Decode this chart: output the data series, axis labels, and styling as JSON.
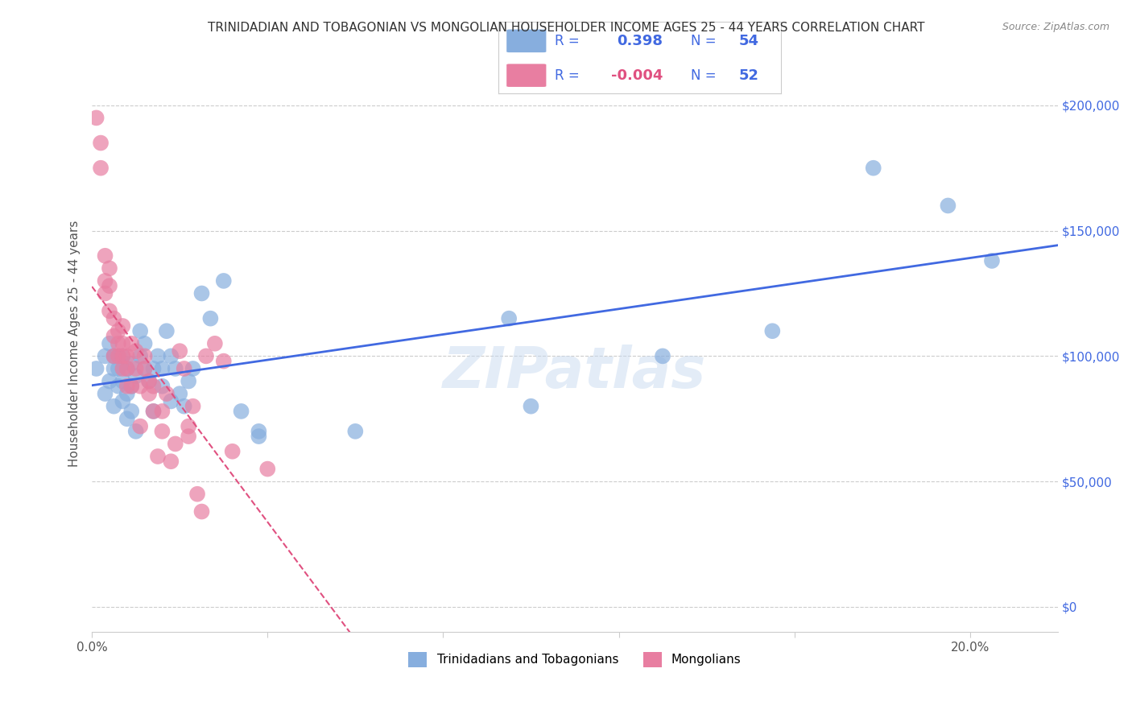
{
  "title": "TRINIDADIAN AND TOBAGONIAN VS MONGOLIAN HOUSEHOLDER INCOME AGES 25 - 44 YEARS CORRELATION CHART",
  "source": "Source: ZipAtlas.com",
  "xlabel_bottom": "",
  "ylabel": "Householder Income Ages 25 - 44 years",
  "xlim": [
    0.0,
    0.22
  ],
  "ylim": [
    -10000,
    220000
  ],
  "x_ticks": [
    0.0,
    0.04,
    0.08,
    0.12,
    0.16,
    0.2
  ],
  "x_tick_labels": [
    "0.0%",
    "",
    "",
    "",
    "",
    "20.0%"
  ],
  "y_ticks": [
    0,
    50000,
    100000,
    150000,
    200000
  ],
  "y_tick_labels": [
    "$0",
    "$50,000",
    "$100,000",
    "$150,000",
    "$200,000"
  ],
  "legend_labels": [
    "Trinidadians and Tobagonians",
    "Mongolians"
  ],
  "blue_color": "#87AEDE",
  "pink_color": "#E87EA1",
  "blue_line_color": "#4169E1",
  "pink_line_color": "#E05080",
  "R_blue": 0.398,
  "N_blue": 54,
  "R_pink": -0.004,
  "N_pink": 52,
  "blue_scatter_x": [
    0.001,
    0.003,
    0.003,
    0.004,
    0.004,
    0.005,
    0.005,
    0.005,
    0.006,
    0.006,
    0.006,
    0.007,
    0.007,
    0.007,
    0.008,
    0.008,
    0.008,
    0.009,
    0.009,
    0.009,
    0.01,
    0.01,
    0.011,
    0.011,
    0.012,
    0.012,
    0.013,
    0.014,
    0.014,
    0.015,
    0.016,
    0.016,
    0.017,
    0.018,
    0.018,
    0.019,
    0.02,
    0.021,
    0.022,
    0.023,
    0.025,
    0.027,
    0.03,
    0.034,
    0.038,
    0.038,
    0.06,
    0.095,
    0.1,
    0.13,
    0.155,
    0.178,
    0.195,
    0.205
  ],
  "blue_scatter_y": [
    95000,
    85000,
    100000,
    90000,
    105000,
    80000,
    95000,
    100000,
    88000,
    95000,
    100000,
    82000,
    90000,
    100000,
    75000,
    85000,
    95000,
    78000,
    88000,
    97000,
    70000,
    92000,
    100000,
    110000,
    95000,
    105000,
    90000,
    78000,
    95000,
    100000,
    88000,
    95000,
    110000,
    82000,
    100000,
    95000,
    85000,
    80000,
    90000,
    95000,
    125000,
    115000,
    130000,
    78000,
    70000,
    68000,
    70000,
    115000,
    80000,
    100000,
    110000,
    175000,
    160000,
    138000
  ],
  "pink_scatter_x": [
    0.001,
    0.002,
    0.002,
    0.003,
    0.003,
    0.003,
    0.004,
    0.004,
    0.004,
    0.005,
    0.005,
    0.005,
    0.006,
    0.006,
    0.006,
    0.007,
    0.007,
    0.007,
    0.007,
    0.008,
    0.008,
    0.008,
    0.009,
    0.009,
    0.01,
    0.01,
    0.011,
    0.011,
    0.012,
    0.012,
    0.013,
    0.013,
    0.014,
    0.014,
    0.015,
    0.016,
    0.016,
    0.017,
    0.018,
    0.019,
    0.02,
    0.021,
    0.022,
    0.022,
    0.023,
    0.024,
    0.025,
    0.026,
    0.028,
    0.03,
    0.032,
    0.04
  ],
  "pink_scatter_y": [
    195000,
    175000,
    185000,
    125000,
    130000,
    140000,
    128000,
    118000,
    135000,
    100000,
    108000,
    115000,
    100000,
    105000,
    110000,
    95000,
    100000,
    105000,
    112000,
    88000,
    95000,
    100000,
    105000,
    88000,
    95000,
    102000,
    72000,
    88000,
    95000,
    100000,
    85000,
    90000,
    78000,
    88000,
    60000,
    70000,
    78000,
    85000,
    58000,
    65000,
    102000,
    95000,
    72000,
    68000,
    80000,
    45000,
    38000,
    100000,
    105000,
    98000,
    62000,
    55000
  ],
  "watermark": "ZIPatlas",
  "background_color": "#ffffff",
  "grid_color": "#cccccc"
}
